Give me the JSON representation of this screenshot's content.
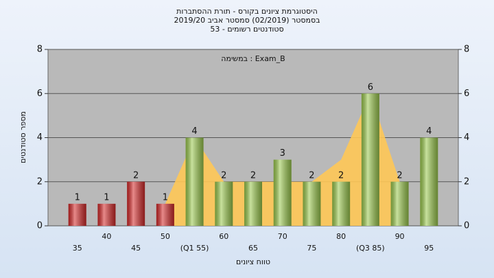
{
  "chart_data": {
    "type": "bar",
    "title": "היסטוגרמת ציונים בקורס - תורת ההסתברות",
    "subtitle": "בסמסטר  (02/2019)  סמסטר אביב 2019/20",
    "subtitle2": "53 - סטודנטים רשומים",
    "annotation": "במשימה : Exam_B",
    "y_label": "מספר סטודנטים",
    "x_label": "טווח ציונים",
    "categories": [
      "35",
      "40",
      "45",
      "50",
      "(Q1 55)",
      "60",
      "65",
      "70",
      "75",
      "80",
      "(Q3 85)",
      "90",
      "95"
    ],
    "values": [
      1,
      1,
      2,
      1,
      4,
      2,
      2,
      3,
      2,
      2,
      6,
      2,
      4
    ],
    "colors": [
      "#d42a2a",
      "#d42a2a",
      "#d42a2a",
      "#d42a2a",
      "#9bc94e",
      "#9bc94e",
      "#9bc94e",
      "#9bc94e",
      "#9bc94e",
      "#9bc94e",
      "#9bc94e",
      "#9bc94e",
      "#9bc94e"
    ],
    "band": {
      "color": "#ffc857",
      "values": [
        null,
        null,
        null,
        1,
        4,
        2,
        2,
        2,
        2,
        3,
        6,
        2,
        null
      ]
    },
    "ylim": [
      0,
      8
    ],
    "yticks": [
      0,
      2,
      4,
      6,
      8
    ],
    "y2lim": [
      0,
      8
    ],
    "y2ticks": [
      0,
      2,
      4,
      6,
      8
    ],
    "grid": true
  }
}
